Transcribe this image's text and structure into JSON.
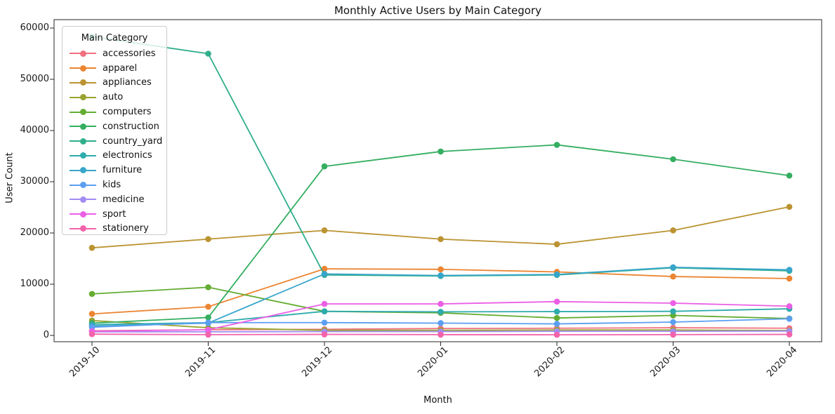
{
  "figure": {
    "title": "Monthly Active Users by Main Category",
    "xlabel": "Month",
    "ylabel": "User Count",
    "legend_title": "Main Category"
  },
  "chart_data": {
    "type": "line",
    "title": "Monthly Active Users by Main Category",
    "xlabel": "Month",
    "ylabel": "User Count",
    "categories": [
      "2019-10",
      "2019-11",
      "2019-12",
      "2020-01",
      "2020-02",
      "2020-03",
      "2020-04"
    ],
    "ylim": [
      0,
      60000
    ],
    "yticks": [
      0,
      10000,
      20000,
      30000,
      40000,
      50000,
      60000
    ],
    "grid": false,
    "legend": {
      "title": "Main Category",
      "position": "upper-left"
    },
    "marker": "circle",
    "series": [
      {
        "name": "accessories",
        "color": "#f17180",
        "values": [
          900,
          1100,
          1200,
          1350,
          1400,
          1500,
          1400
        ]
      },
      {
        "name": "apparel",
        "color": "#ec8532",
        "values": [
          4200,
          5600,
          13000,
          12900,
          12400,
          11500,
          11100
        ]
      },
      {
        "name": "appliances",
        "color": "#bb9331",
        "values": [
          17100,
          18800,
          20500,
          18800,
          17800,
          20500,
          25100
        ]
      },
      {
        "name": "auto",
        "color": "#9aa330",
        "values": [
          2900,
          1500,
          1000,
          1000,
          1050,
          1050,
          950
        ]
      },
      {
        "name": "computers",
        "color": "#64ad32",
        "values": [
          8100,
          9400,
          4700,
          4400,
          3400,
          3900,
          3300
        ]
      },
      {
        "name": "construction",
        "color": "#34ae60",
        "values": [
          2400,
          3500,
          33000,
          35900,
          37200,
          34400,
          31200
        ]
      },
      {
        "name": "country_yard",
        "color": "#30ae8b",
        "values": [
          58300,
          55000,
          11800,
          11600,
          11800,
          13200,
          12600
        ]
      },
      {
        "name": "electronics",
        "color": "#2eabad",
        "values": [
          2100,
          2500,
          4700,
          4600,
          4650,
          4700,
          5200
        ]
      },
      {
        "name": "furniture",
        "color": "#37a5ca",
        "values": [
          1800,
          2400,
          12000,
          11700,
          11900,
          13300,
          12800
        ]
      },
      {
        "name": "kids",
        "color": "#5c9ef2",
        "values": [
          1600,
          2500,
          2500,
          2400,
          2250,
          2600,
          3250
        ]
      },
      {
        "name": "medicine",
        "color": "#a28cf2",
        "values": [
          700,
          700,
          750,
          750,
          800,
          800,
          850
        ]
      },
      {
        "name": "sport",
        "color": "#eb5fe6",
        "values": [
          800,
          1100,
          6150,
          6150,
          6600,
          6300,
          5700
        ]
      },
      {
        "name": "stationery",
        "color": "#f363ab",
        "values": [
          250,
          150,
          200,
          150,
          120,
          150,
          200
        ]
      }
    ]
  }
}
